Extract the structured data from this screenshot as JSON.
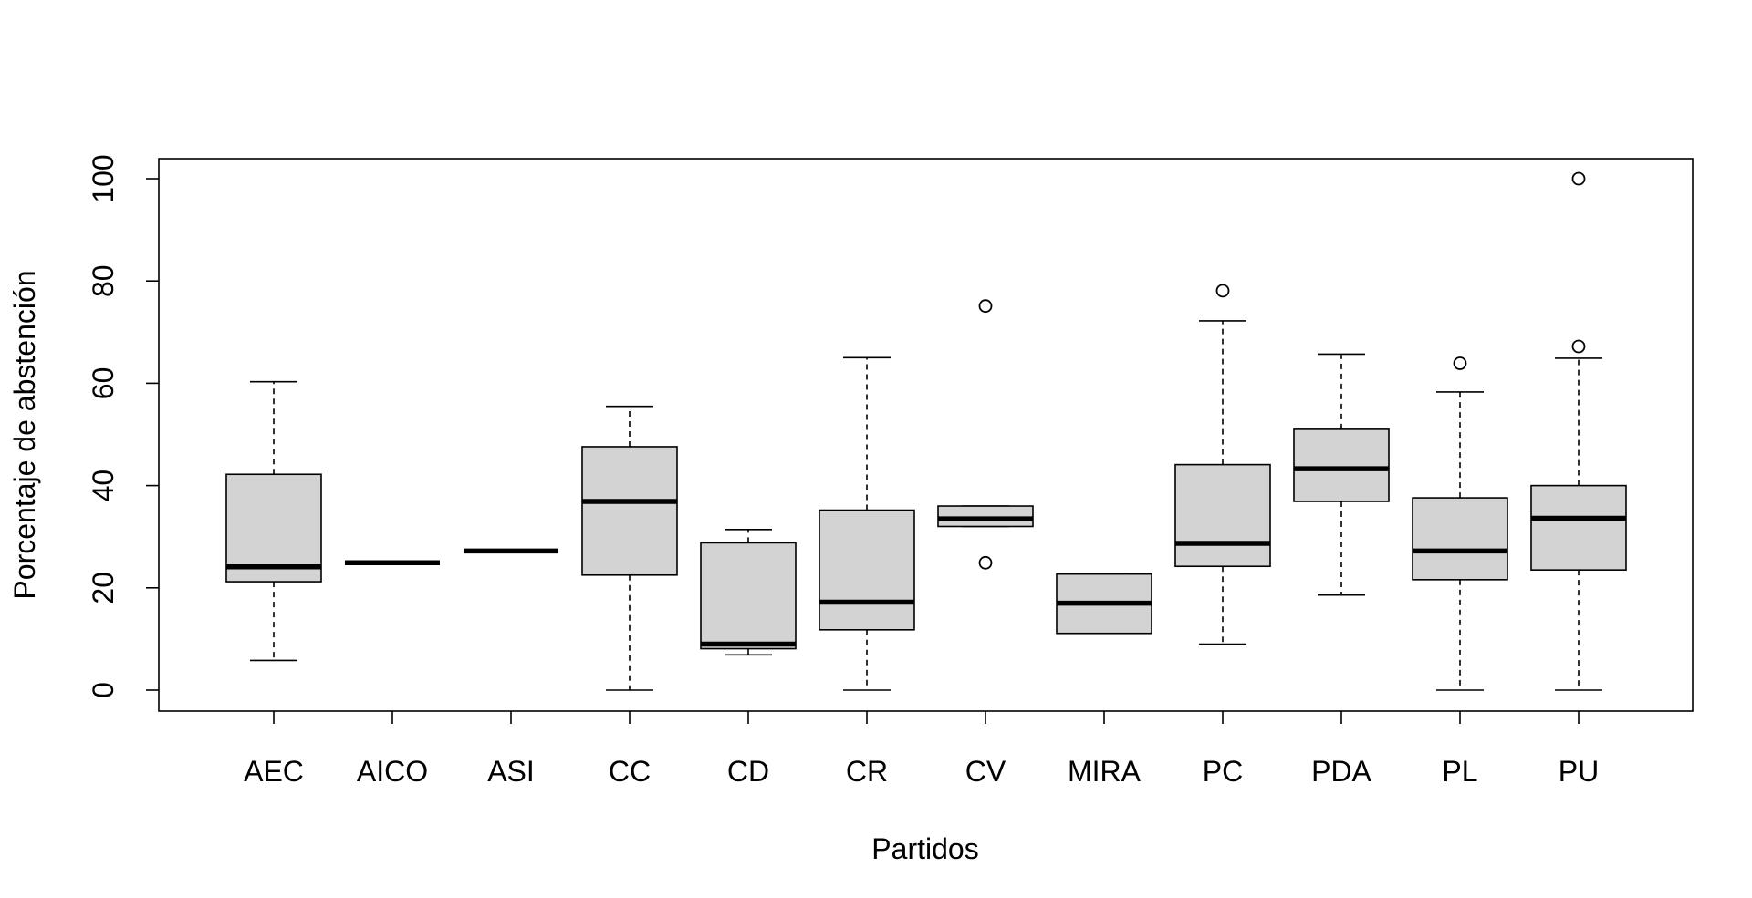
{
  "chart_data": {
    "type": "boxplot",
    "title": "",
    "xlabel": "Partidos",
    "ylabel": "Porcentaje de abstención",
    "ylim": [
      -4,
      104
    ],
    "yticks": [
      "0",
      "20",
      "40",
      "60",
      "80",
      "100"
    ],
    "categories": [
      "AEC",
      "AICO",
      "ASI",
      "CC",
      "CD",
      "CR",
      "CV",
      "MIRA",
      "PC",
      "PDA",
      "PL",
      "PU"
    ],
    "boxes": [
      {
        "name": "AEC",
        "whisker_low": 5.8,
        "q1": 21.2,
        "median": 24.1,
        "q3": 42.2,
        "whisker_high": 60.3,
        "outliers": []
      },
      {
        "name": "AICO",
        "whisker_low": 24.9,
        "q1": 24.9,
        "median": 24.9,
        "q3": 24.9,
        "whisker_high": 24.9,
        "outliers": []
      },
      {
        "name": "ASI",
        "whisker_low": 27.2,
        "q1": 27.2,
        "median": 27.2,
        "q3": 27.2,
        "whisker_high": 27.2,
        "outliers": []
      },
      {
        "name": "CC",
        "whisker_low": 0.0,
        "q1": 22.5,
        "median": 36.9,
        "q3": 47.6,
        "whisker_high": 55.5,
        "outliers": []
      },
      {
        "name": "CD",
        "whisker_low": 6.9,
        "q1": 8.1,
        "median": 9.0,
        "q3": 28.8,
        "whisker_high": 31.4,
        "outliers": []
      },
      {
        "name": "CR",
        "whisker_low": 0.0,
        "q1": 11.8,
        "median": 17.2,
        "q3": 35.2,
        "whisker_high": 65.0,
        "outliers": []
      },
      {
        "name": "CV",
        "whisker_low": 32.0,
        "q1": 32.0,
        "median": 33.5,
        "q3": 36.0,
        "whisker_high": 36.0,
        "outliers": [
          75.1,
          24.9
        ]
      },
      {
        "name": "MIRA",
        "whisker_low": 11.1,
        "q1": 11.1,
        "median": 17.0,
        "q3": 22.7,
        "whisker_high": 22.7,
        "outliers": []
      },
      {
        "name": "PC",
        "whisker_low": 9.0,
        "q1": 24.2,
        "median": 28.7,
        "q3": 44.1,
        "whisker_high": 72.2,
        "outliers": [
          78.1
        ]
      },
      {
        "name": "PDA",
        "whisker_low": 18.6,
        "q1": 36.9,
        "median": 43.3,
        "q3": 51.0,
        "whisker_high": 65.7,
        "outliers": []
      },
      {
        "name": "PL",
        "whisker_low": 0.0,
        "q1": 21.6,
        "median": 27.2,
        "q3": 37.6,
        "whisker_high": 58.3,
        "outliers": [
          63.9
        ]
      },
      {
        "name": "PU",
        "whisker_low": 0.0,
        "q1": 23.5,
        "median": 33.6,
        "q3": 40.0,
        "whisker_high": 64.9,
        "outliers": [
          67.2,
          100.0
        ]
      }
    ],
    "colors": {
      "box_fill": "#d3d3d3",
      "stroke": "#000000",
      "background": "#ffffff"
    }
  }
}
